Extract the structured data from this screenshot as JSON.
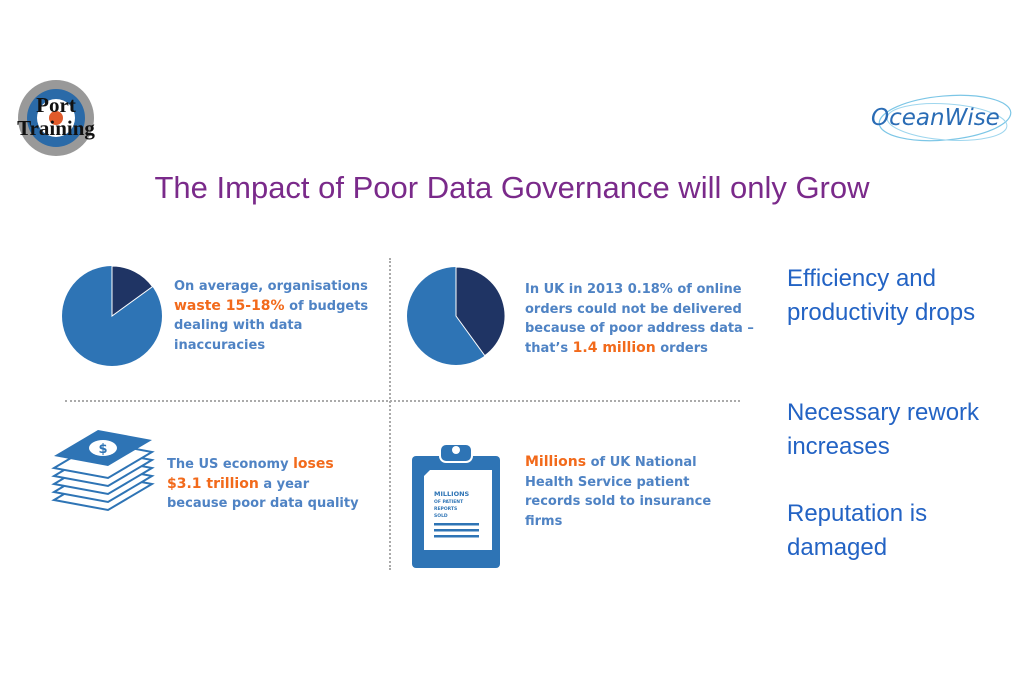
{
  "logos": {
    "left": "Port Training",
    "right": "OceanWise"
  },
  "title": "The Impact of Poor Data Governance will only Grow",
  "stats": [
    {
      "pre": "On average, organisations",
      "highlight": "waste 15-18%",
      "post": "of budgets dealing with data inaccuracies",
      "pie_fraction": 0.15
    },
    {
      "pre": "In UK in 2013 0.18% of online orders could not be delivered because of poor address data – that’s",
      "highlight": "1.4 million",
      "post": "orders",
      "pie_fraction": 0.4
    },
    {
      "pre": "The US economy",
      "highlight": "loses $3.1 trillion",
      "post": "a year because poor data quality"
    },
    {
      "pre": "",
      "highlight": "Millions",
      "post": "of UK National Health Service patient records sold to insurance firms",
      "icon_text": [
        "MILLIONS",
        "OF PATIENT",
        "REPORTS",
        "SOLD"
      ]
    }
  ],
  "impacts": [
    "Efficiency and productivity drops",
    "Necessary rework increases",
    "Reputation is damaged"
  ],
  "colors": {
    "title": "#7a2a8a",
    "pie_main": "#2e74b5",
    "pie_dark": "#1f3464",
    "highlight": "#f26a1b",
    "text": "#4f83c4",
    "impact": "#2363c4"
  }
}
